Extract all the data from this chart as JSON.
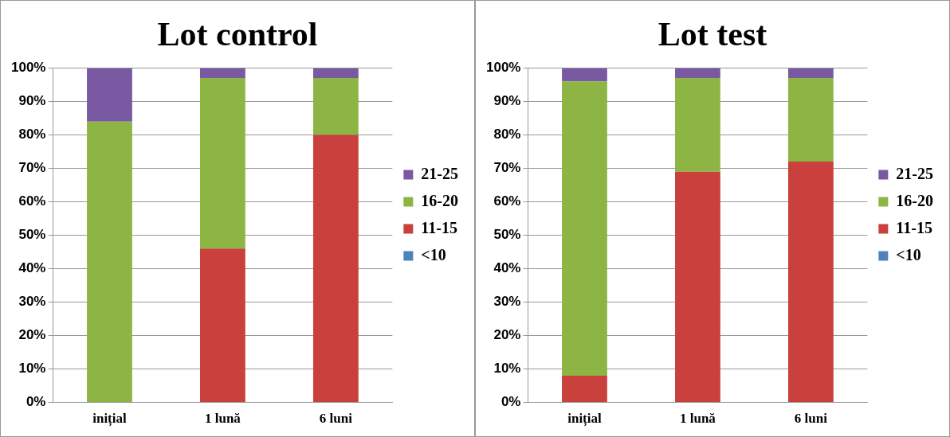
{
  "chart_data": [
    {
      "type": "bar",
      "title": "Lot control",
      "categories": [
        "inițial",
        "1 lună",
        "6 luni"
      ],
      "stacked": true,
      "series": [
        {
          "name": "<10",
          "color": "#4f81bd",
          "values": [
            0,
            0,
            0
          ]
        },
        {
          "name": "11-15",
          "color": "#c9403c",
          "values": [
            0,
            46,
            80
          ]
        },
        {
          "name": "16-20",
          "color": "#8db543",
          "values": [
            84,
            51,
            17
          ]
        },
        {
          "name": "21-25",
          "color": "#7a59a3",
          "values": [
            16,
            3,
            3
          ]
        }
      ],
      "ylim": [
        0,
        100
      ],
      "yticks": [
        {
          "value": 0,
          "label": "0%"
        },
        {
          "value": 10,
          "label": "10%"
        },
        {
          "value": 20,
          "label": "20%"
        },
        {
          "value": 30,
          "label": "30%"
        },
        {
          "value": 40,
          "label": "40%"
        },
        {
          "value": 50,
          "label": "50%"
        },
        {
          "value": 60,
          "label": "60%"
        },
        {
          "value": 70,
          "label": "70%"
        },
        {
          "value": 80,
          "label": "80%"
        },
        {
          "value": 90,
          "label": "90%"
        },
        {
          "value": 100,
          "label": "100%"
        }
      ],
      "grid": "y",
      "legend": "right"
    },
    {
      "type": "bar",
      "title": "Lot test",
      "categories": [
        "inițial",
        "1 lună",
        "6 luni"
      ],
      "stacked": true,
      "series": [
        {
          "name": "<10",
          "color": "#4f81bd",
          "values": [
            0,
            0,
            0
          ]
        },
        {
          "name": "11-15",
          "color": "#c9403c",
          "values": [
            8,
            69,
            72
          ]
        },
        {
          "name": "16-20",
          "color": "#8db543",
          "values": [
            88,
            28,
            25
          ]
        },
        {
          "name": "21-25",
          "color": "#7a59a3",
          "values": [
            4,
            3,
            3
          ]
        }
      ],
      "ylim": [
        0,
        100
      ],
      "yticks": [
        {
          "value": 0,
          "label": "0%"
        },
        {
          "value": 10,
          "label": "10%"
        },
        {
          "value": 20,
          "label": "20%"
        },
        {
          "value": 30,
          "label": "30%"
        },
        {
          "value": 40,
          "label": "40%"
        },
        {
          "value": 50,
          "label": "50%"
        },
        {
          "value": 60,
          "label": "60%"
        },
        {
          "value": 70,
          "label": "70%"
        },
        {
          "value": 80,
          "label": "80%"
        },
        {
          "value": 90,
          "label": "90%"
        },
        {
          "value": 100,
          "label": "100%"
        }
      ],
      "grid": "y",
      "legend": "right"
    }
  ]
}
